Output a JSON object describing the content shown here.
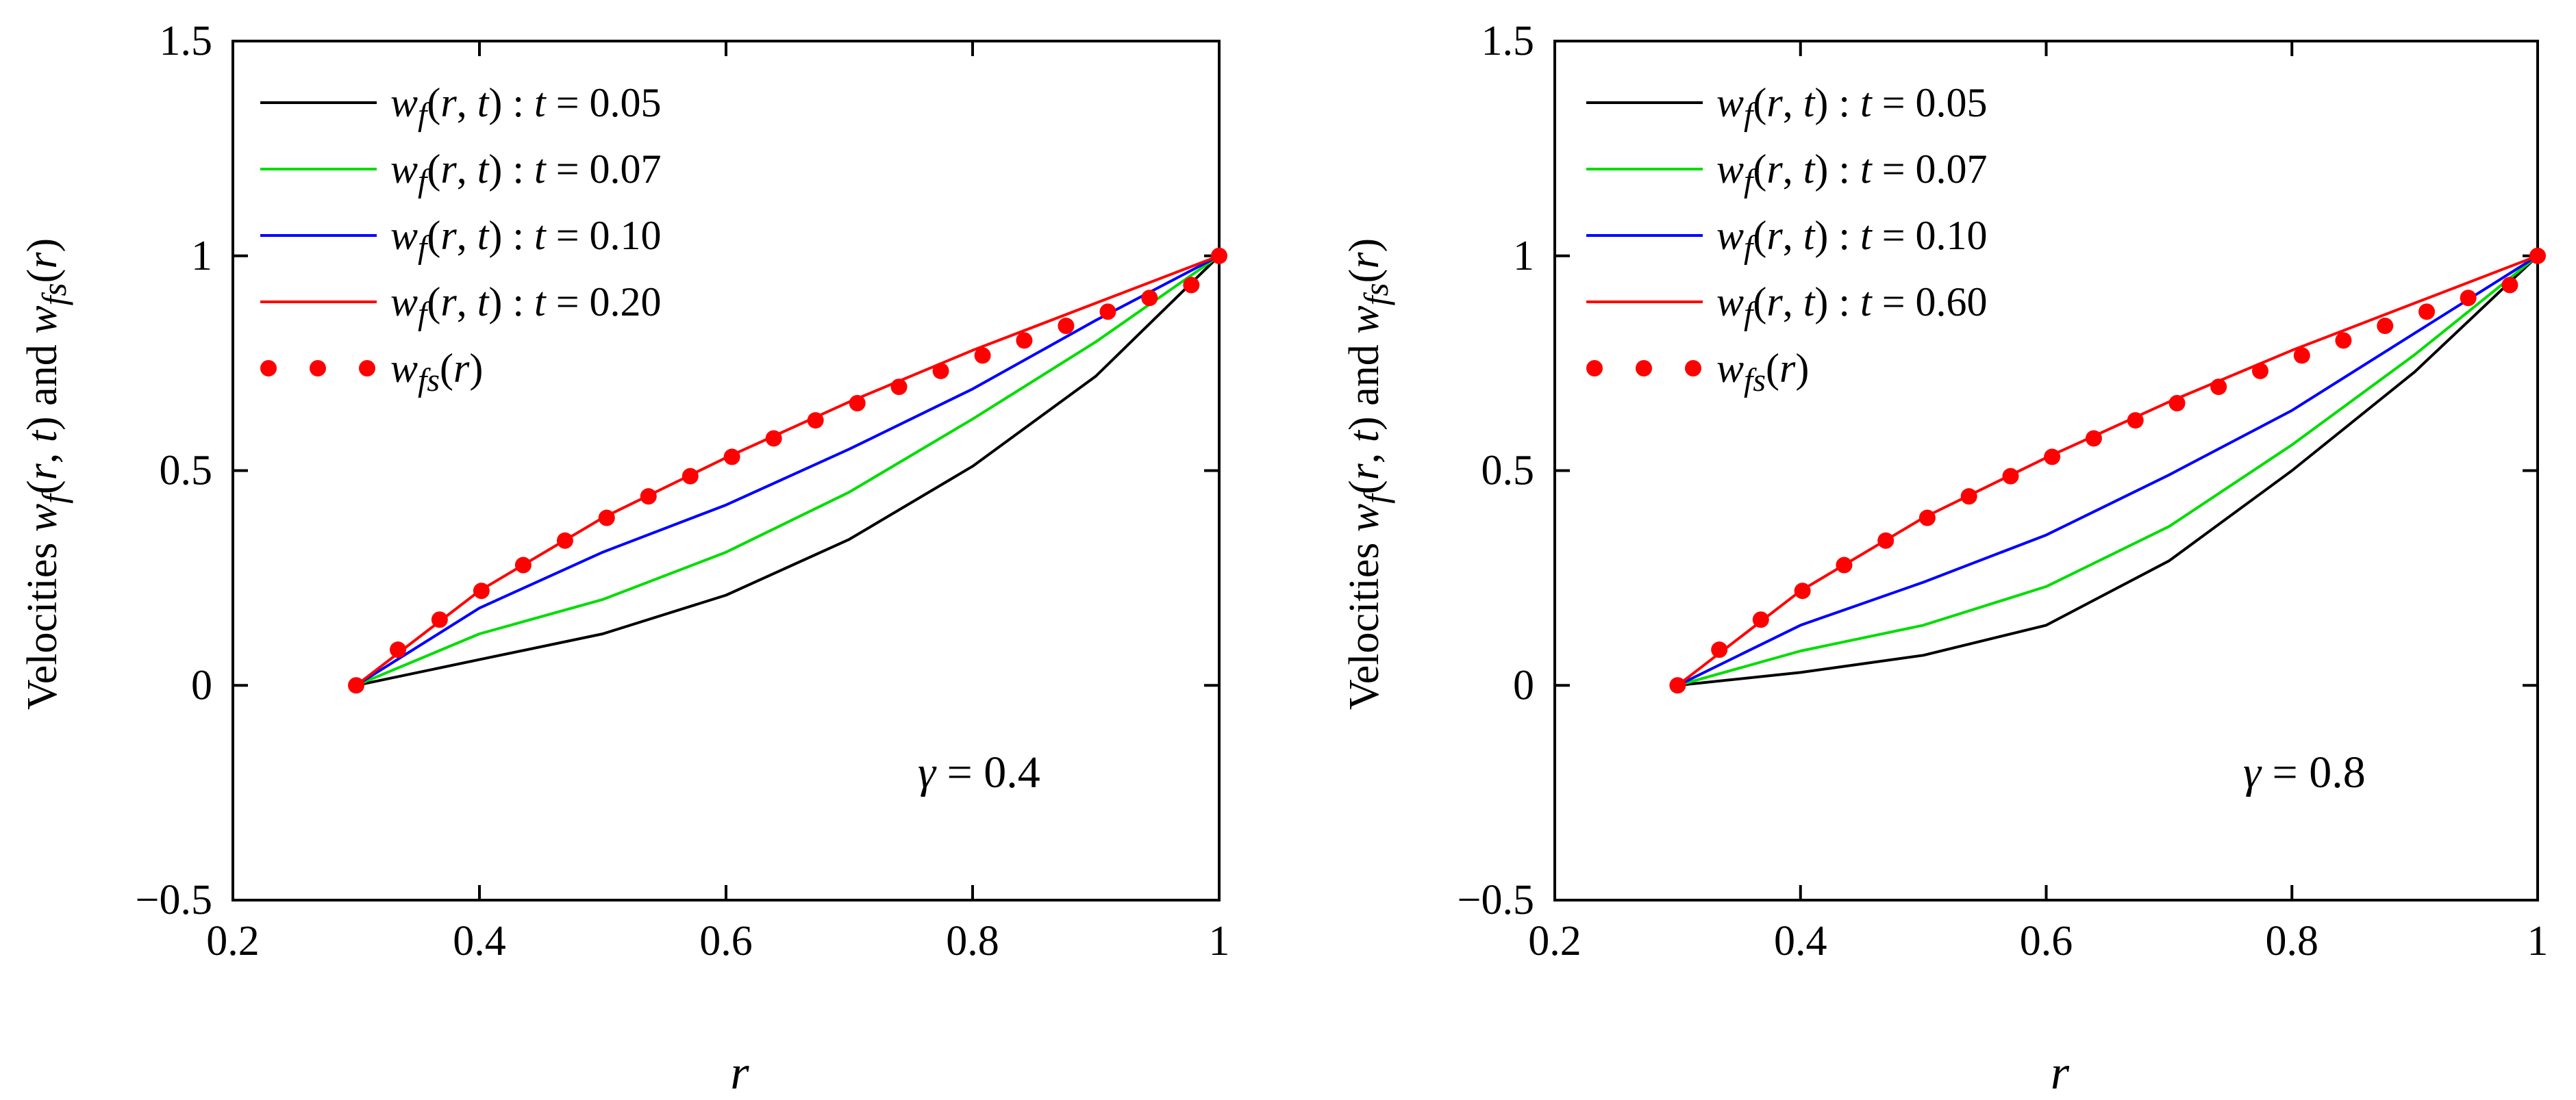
{
  "chart_data": [
    {
      "type": "line",
      "panel": "left",
      "annotation": "γ = 0.4",
      "xlabel": "r",
      "ylabel": "Velocities w_f(r, t) and w_fs(r)",
      "xlim": [
        0.2,
        1
      ],
      "ylim": [
        -0.5,
        1.5
      ],
      "xticks": [
        "0.2",
        "0.4",
        "0.6",
        "0.8",
        "1"
      ],
      "yticks": [
        "−0.5",
        "0",
        "0.5",
        "1",
        "1.5"
      ],
      "grid": false,
      "legend_position": "top-left",
      "series": [
        {
          "name": "w_f(r, t) : t = 0.05",
          "func": "w_f",
          "time": "t = 0.05",
          "color": "#000000",
          "style": "line",
          "x": [
            0.3,
            0.4,
            0.5,
            0.6,
            0.7,
            0.8,
            0.9,
            1.0
          ],
          "y": [
            0.0,
            0.06,
            0.12,
            0.21,
            0.34,
            0.51,
            0.72,
            1.0
          ]
        },
        {
          "name": "w_f(r, t) : t = 0.07",
          "func": "w_f",
          "time": "t = 0.07",
          "color": "#00dd00",
          "style": "line",
          "x": [
            0.3,
            0.4,
            0.5,
            0.6,
            0.7,
            0.8,
            0.9,
            1.0
          ],
          "y": [
            0.0,
            0.12,
            0.2,
            0.31,
            0.45,
            0.62,
            0.8,
            1.0
          ]
        },
        {
          "name": "w_f(r, t) : t = 0.10",
          "func": "w_f",
          "time": "t = 0.10",
          "color": "#0000ff",
          "style": "line",
          "x": [
            0.3,
            0.4,
            0.5,
            0.6,
            0.7,
            0.8,
            0.9,
            1.0
          ],
          "y": [
            0.0,
            0.18,
            0.31,
            0.42,
            0.55,
            0.69,
            0.85,
            1.0
          ]
        },
        {
          "name": "w_f(r, t) : t = 0.20",
          "func": "w_f",
          "time": "t = 0.20",
          "color": "#ff0000",
          "style": "line",
          "x": [
            0.3,
            0.4,
            0.5,
            0.6,
            0.7,
            0.8,
            0.9,
            1.0
          ],
          "y": [
            0.0,
            0.22,
            0.39,
            0.53,
            0.66,
            0.78,
            0.89,
            1.0
          ]
        },
        {
          "name": "w_fs(r)",
          "func": "w_fs",
          "time": "",
          "color": "#ff0000",
          "style": "dots",
          "x": [
            0.3,
            0.3339,
            0.3677,
            0.4016,
            0.4355,
            0.4694,
            0.5032,
            0.5371,
            0.571,
            0.6048,
            0.6387,
            0.6726,
            0.7065,
            0.7403,
            0.7742,
            0.8081,
            0.8419,
            0.8758,
            0.9097,
            0.9435,
            0.9774,
            1.0
          ],
          "y": [
            0.0,
            0.083,
            0.153,
            0.22,
            0.28,
            0.337,
            0.39,
            0.44,
            0.487,
            0.532,
            0.575,
            0.617,
            0.657,
            0.695,
            0.732,
            0.768,
            0.803,
            0.837,
            0.87,
            0.902,
            0.932,
            1.0
          ]
        }
      ]
    },
    {
      "type": "line",
      "panel": "right",
      "annotation": "γ = 0.8",
      "xlabel": "r",
      "ylabel": "Velocities w_f(r, t) and w_fs(r)",
      "xlim": [
        0.2,
        1
      ],
      "ylim": [
        -0.5,
        1.5
      ],
      "xticks": [
        "0.2",
        "0.4",
        "0.6",
        "0.8",
        "1"
      ],
      "yticks": [
        "−0.5",
        "0",
        "0.5",
        "1",
        "1.5"
      ],
      "grid": false,
      "legend_position": "top-left",
      "series": [
        {
          "name": "w_f(r, t) : t = 0.05",
          "func": "w_f",
          "time": "t = 0.05",
          "color": "#000000",
          "style": "line",
          "x": [
            0.3,
            0.4,
            0.5,
            0.6,
            0.7,
            0.8,
            0.9,
            1.0
          ],
          "y": [
            0.0,
            0.03,
            0.07,
            0.14,
            0.29,
            0.5,
            0.73,
            1.0
          ]
        },
        {
          "name": "w_f(r, t) : t = 0.07",
          "func": "w_f",
          "time": "t = 0.07",
          "color": "#00dd00",
          "style": "line",
          "x": [
            0.3,
            0.4,
            0.5,
            0.6,
            0.7,
            0.8,
            0.9,
            1.0
          ],
          "y": [
            0.0,
            0.08,
            0.14,
            0.23,
            0.37,
            0.56,
            0.77,
            1.0
          ]
        },
        {
          "name": "w_f(r, t) : t = 0.10",
          "func": "w_f",
          "time": "t = 0.10",
          "color": "#0000ff",
          "style": "line",
          "x": [
            0.3,
            0.4,
            0.5,
            0.6,
            0.7,
            0.8,
            0.9,
            1.0
          ],
          "y": [
            0.0,
            0.14,
            0.24,
            0.35,
            0.49,
            0.64,
            0.82,
            1.0
          ]
        },
        {
          "name": "w_f(r, t) : t = 0.60",
          "func": "w_f",
          "time": "t = 0.60",
          "color": "#ff0000",
          "style": "line",
          "x": [
            0.3,
            0.4,
            0.5,
            0.6,
            0.7,
            0.8,
            0.9,
            1.0
          ],
          "y": [
            0.0,
            0.22,
            0.39,
            0.53,
            0.66,
            0.78,
            0.89,
            1.0
          ]
        },
        {
          "name": "w_fs(r)",
          "func": "w_fs",
          "time": "",
          "color": "#ff0000",
          "style": "dots",
          "x": [
            0.3,
            0.3339,
            0.3677,
            0.4016,
            0.4355,
            0.4694,
            0.5032,
            0.5371,
            0.571,
            0.6048,
            0.6387,
            0.6726,
            0.7065,
            0.7403,
            0.7742,
            0.8081,
            0.8419,
            0.8758,
            0.9097,
            0.9435,
            0.9774,
            1.0
          ],
          "y": [
            0.0,
            0.083,
            0.153,
            0.22,
            0.28,
            0.337,
            0.39,
            0.44,
            0.487,
            0.532,
            0.575,
            0.617,
            0.657,
            0.695,
            0.732,
            0.768,
            0.803,
            0.837,
            0.87,
            0.902,
            0.932,
            1.0
          ]
        }
      ]
    }
  ]
}
